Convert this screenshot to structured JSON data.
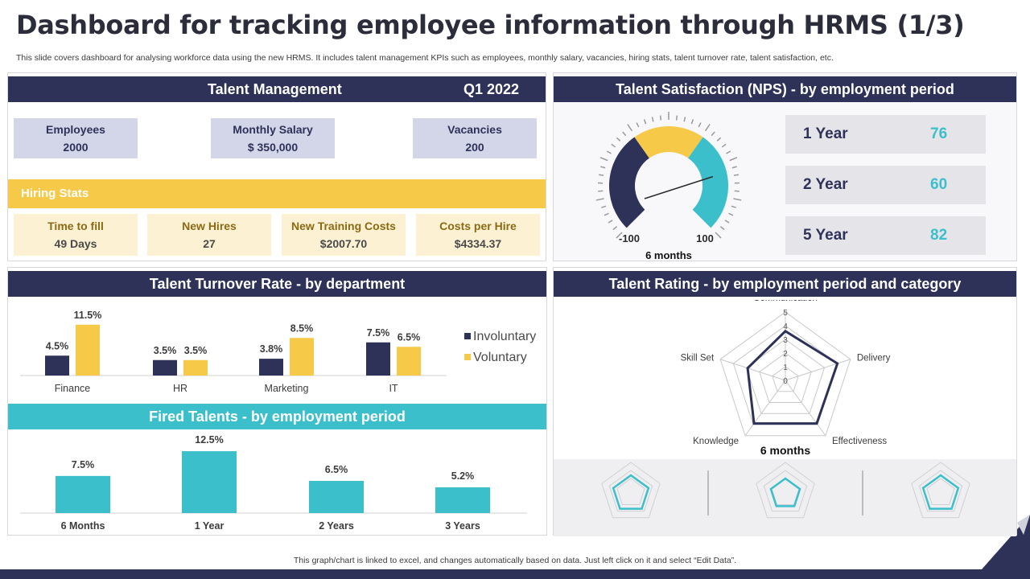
{
  "header": {
    "title": "Dashboard for tracking employee information through HRMS (1/3)",
    "subtitle": "This slide covers dashboard for analysing workforce data using the new HRMS. It includes talent management KPIs such as employees, monthly salary, vacancies, hiring stats, talent turnover rate, talent satisfaction, etc."
  },
  "talent_management": {
    "title": "Talent Management",
    "period": "Q1 2022",
    "kpis": [
      {
        "label": "Employees",
        "value": "2000"
      },
      {
        "label": "Monthly Salary",
        "value": "$ 350,000"
      },
      {
        "label": "Vacancies",
        "value": "200"
      }
    ],
    "hiring_title": "Hiring Stats",
    "hiring": [
      {
        "label": "Time to fill",
        "value": "49 Days"
      },
      {
        "label": "New Hires",
        "value": "27"
      },
      {
        "label": "New Training Costs",
        "value": "$2007.70"
      },
      {
        "label": "Costs per Hire",
        "value": "$4334.37"
      }
    ]
  },
  "satisfaction": {
    "title": "Talent Satisfaction (NPS) - by employment period",
    "gauge_min": "-100",
    "gauge_max": "100",
    "gauge_caption": "6 months",
    "gauge_value_fraction": 0.79,
    "rows": [
      {
        "label": "1 Year",
        "value": "76"
      },
      {
        "label": "2 Year",
        "value": "60"
      },
      {
        "label": "5 Year",
        "value": "82"
      }
    ]
  },
  "turnover": {
    "title": "Talent Turnover Rate - by department"
  },
  "fired": {
    "title": "Fired Talents - by employment period"
  },
  "rating": {
    "title": "Talent Rating - by employment period and category",
    "caption": "6 months"
  },
  "footer": {
    "text": "This graph/chart is linked to excel,  and changes automatically based on data. Just left click on it and select “Edit Data”."
  },
  "colors": {
    "navy": "#2e3259",
    "gold": "#f7c948",
    "teal": "#3abfcb",
    "gray_box": "#e5e5e9"
  },
  "chart_data": [
    {
      "type": "bar",
      "name": "turnover",
      "categories": [
        "Finance",
        "HR",
        "Marketing",
        "IT"
      ],
      "series": [
        {
          "name": "Involuntary",
          "values": [
            4.5,
            3.5,
            3.8,
            7.5
          ],
          "labels": [
            "4.5%",
            "3.5%",
            "3.8%",
            "7.5%"
          ]
        },
        {
          "name": "Voluntary",
          "values": [
            11.5,
            3.5,
            8.5,
            6.5
          ],
          "labels": [
            "11.5%",
            "3.5%",
            "8.5%",
            "6.5%"
          ]
        }
      ],
      "ylim": [
        0,
        12
      ],
      "legend": "right"
    },
    {
      "type": "bar",
      "name": "fired",
      "categories": [
        "6 Months",
        "1 Year",
        "2 Years",
        "3 Years"
      ],
      "values": [
        7.5,
        12.5,
        6.5,
        5.2
      ],
      "labels": [
        "7.5%",
        "12.5%",
        "6.5%",
        "5.2%"
      ],
      "ylim": [
        0,
        13
      ]
    },
    {
      "type": "radar",
      "name": "rating",
      "axes": [
        "Communication",
        "Delivery",
        "Effectiveness",
        "Knowledge",
        "Skill Set"
      ],
      "ticks": [
        "0",
        "1",
        "2",
        "3",
        "4",
        "5"
      ],
      "values": [
        3.6,
        4.0,
        3.9,
        3.9,
        2.9
      ],
      "rmax": 5
    }
  ]
}
